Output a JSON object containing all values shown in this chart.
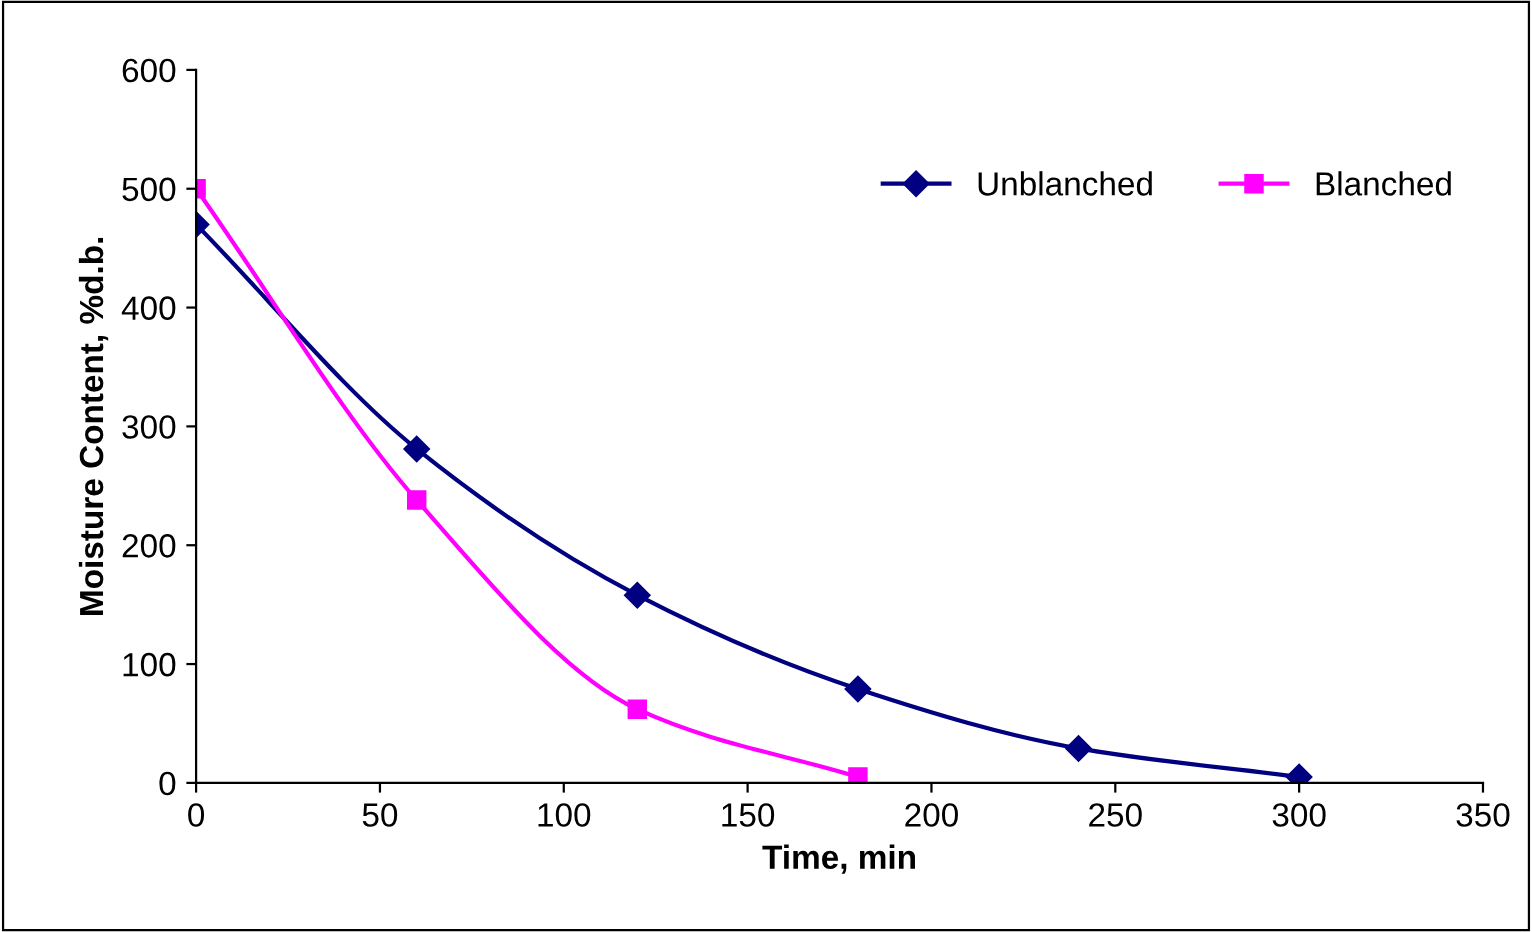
{
  "chart_data": {
    "type": "line",
    "xlabel": "Time, min",
    "ylabel": "Moisture Content, %d.b.",
    "xlim": [
      0,
      350
    ],
    "xticks": [
      0,
      50,
      100,
      150,
      200,
      250,
      300,
      350
    ],
    "ylim": [
      0,
      600
    ],
    "yticks": [
      0,
      100,
      200,
      300,
      400,
      500,
      600
    ],
    "grid": false,
    "legend": "top right",
    "series": [
      {
        "name": "Unblanched",
        "color": "#000080",
        "marker": "diamond",
        "x": [
          0,
          60,
          120,
          180,
          240,
          300
        ],
        "values": [
          470,
          281,
          158,
          79,
          29,
          5
        ]
      },
      {
        "name": "Blanched",
        "color": "#ff00ff",
        "marker": "square",
        "x": [
          0,
          60,
          120,
          180
        ],
        "values": [
          500,
          238,
          62,
          5
        ]
      }
    ]
  }
}
